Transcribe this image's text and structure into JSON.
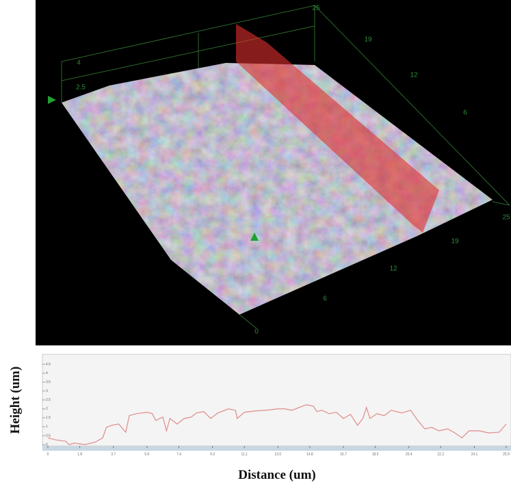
{
  "surface_axes": {
    "back_labels": [
      "25",
      "19",
      "12",
      "6"
    ],
    "front_labels": [
      "25",
      "19",
      "12",
      "6",
      "0"
    ],
    "height_labels": [
      "4",
      "2.5"
    ]
  },
  "chart_data": {
    "type": "line",
    "y_label": "Height (um)",
    "x_label": "Distance (um)",
    "xlim": [
      0,
      25.9
    ],
    "ylim": [
      0,
      4.9
    ],
    "xticks": [
      0,
      1.8,
      3.7,
      5.6,
      7.4,
      9.3,
      11.1,
      {
        "value": 13,
        "label": "13.0"
      },
      14.8,
      16.7,
      18.5,
      20.4,
      22.2,
      24.1,
      25.9
    ],
    "yticks": [
      0,
      0.5,
      1,
      1.5,
      2,
      2.5,
      3,
      3.5,
      4,
      4.5
    ],
    "series": [
      {
        "color": "#e08a8a",
        "x": [
          0,
          0.4,
          1.0,
          1.2,
          1.5,
          2.1,
          2.7,
          3.1,
          3.3,
          3.6,
          4.0,
          4.4,
          4.6,
          5.0,
          5.6,
          5.9,
          6.1,
          6.5,
          6.7,
          6.9,
          7.3,
          7.7,
          8.1,
          8.4,
          8.8,
          9.2,
          9.6,
          10.2,
          10.6,
          10.7,
          11.1,
          11.7,
          12.3,
          13.0,
          13.4,
          13.8,
          14.2,
          14.6,
          15.0,
          15.2,
          15.5,
          15.9,
          16.3,
          16.7,
          17.1,
          17.5,
          17.8,
          18.0,
          18.2,
          18.6,
          19.0,
          19.4,
          20.0,
          20.5,
          20.9,
          21.3,
          21.7,
          22.1,
          22.6,
          23.0,
          23.4,
          23.8,
          24.4,
          24.9,
          25.5,
          25.9
        ],
        "values": [
          0.38,
          0.27,
          0.19,
          0.0,
          0.08,
          0.0,
          0.15,
          0.38,
          0.96,
          1.08,
          1.15,
          0.69,
          1.62,
          1.73,
          1.81,
          1.73,
          1.35,
          1.54,
          0.77,
          1.46,
          1.15,
          1.46,
          1.54,
          1.77,
          1.85,
          1.46,
          1.77,
          2.0,
          1.92,
          1.46,
          1.81,
          1.88,
          1.92,
          2.0,
          2.0,
          1.92,
          2.08,
          2.23,
          2.15,
          1.85,
          1.92,
          1.73,
          1.81,
          1.46,
          1.69,
          1.08,
          1.46,
          2.08,
          1.46,
          1.73,
          1.62,
          1.92,
          1.77,
          1.92,
          1.35,
          0.88,
          0.96,
          0.77,
          0.88,
          0.65,
          0.38,
          0.77,
          0.77,
          0.65,
          0.69,
          1.15
        ]
      }
    ]
  }
}
